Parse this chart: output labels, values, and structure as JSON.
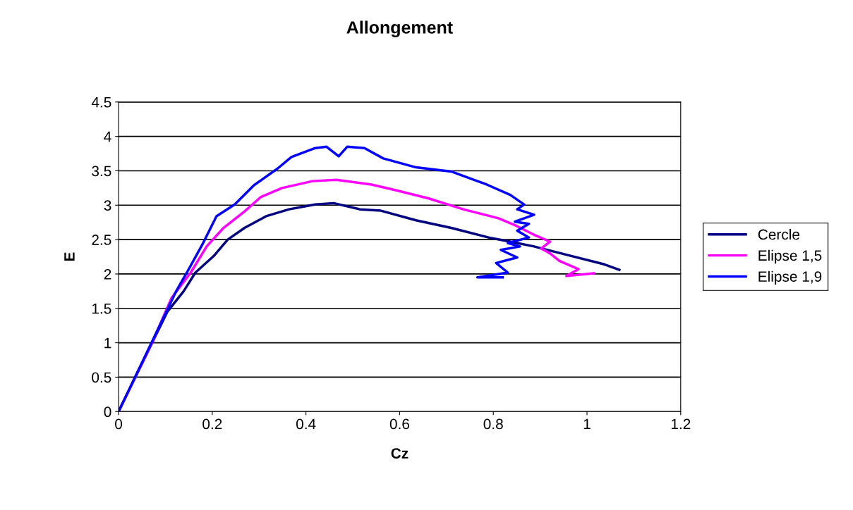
{
  "chart_data": {
    "type": "line",
    "title": "Allongement",
    "xlabel": "Cz",
    "ylabel": "E",
    "xlim": [
      0,
      1.2
    ],
    "xticks": [
      0,
      0.2,
      0.4,
      0.6,
      0.8,
      1,
      1.2
    ],
    "ylim": [
      0,
      4.5
    ],
    "yticks": [
      0,
      0.5,
      1,
      1.5,
      2,
      2.5,
      3,
      3.5,
      4,
      4.5
    ],
    "grid": "y",
    "legend": "right",
    "marker": "none",
    "line_style": "solid",
    "series": [
      {
        "name": "Cercle",
        "color": "#000080",
        "x": [
          0,
          0.104,
          0.139,
          0.164,
          0.203,
          0.233,
          0.269,
          0.315,
          0.364,
          0.42,
          0.459,
          0.515,
          0.56,
          0.635,
          0.71,
          0.79,
          0.836,
          0.887,
          0.962,
          1.037,
          1.069
        ],
        "values": [
          0,
          1.45,
          1.75,
          2.02,
          2.26,
          2.5,
          2.67,
          2.84,
          2.94,
          3.01,
          3.03,
          2.94,
          2.92,
          2.78,
          2.67,
          2.53,
          2.47,
          2.4,
          2.27,
          2.14,
          2.06
        ]
      },
      {
        "name": "Elipse 1,5",
        "color": "#ff00ff",
        "x": [
          0,
          0.074,
          0.113,
          0.154,
          0.188,
          0.224,
          0.269,
          0.304,
          0.349,
          0.414,
          0.465,
          0.54,
          0.59,
          0.661,
          0.736,
          0.811,
          0.846,
          0.887,
          0.921,
          0.902,
          0.921,
          0.941,
          0.982,
          0.956,
          1.015
        ],
        "values": [
          0,
          1.04,
          1.65,
          2.02,
          2.4,
          2.67,
          2.91,
          3.12,
          3.25,
          3.35,
          3.37,
          3.3,
          3.22,
          3.1,
          2.94,
          2.81,
          2.71,
          2.57,
          2.47,
          2.37,
          2.3,
          2.19,
          2.07,
          1.97,
          2.01
        ]
      },
      {
        "name": "Elipse 1,9",
        "color": "#0000ff",
        "x": [
          0,
          0.123,
          0.149,
          0.179,
          0.209,
          0.248,
          0.289,
          0.339,
          0.369,
          0.42,
          0.444,
          0.47,
          0.488,
          0.525,
          0.565,
          0.635,
          0.71,
          0.786,
          0.836,
          0.866,
          0.851,
          0.887,
          0.846,
          0.876,
          0.851,
          0.876,
          0.831,
          0.857,
          0.816,
          0.851,
          0.806,
          0.831,
          0.766,
          0.82
        ],
        "values": [
          0,
          1.75,
          2.06,
          2.43,
          2.84,
          3.01,
          3.29,
          3.53,
          3.7,
          3.83,
          3.85,
          3.71,
          3.85,
          3.83,
          3.68,
          3.55,
          3.49,
          3.3,
          3.15,
          3.01,
          2.94,
          2.86,
          2.76,
          2.73,
          2.63,
          2.53,
          2.45,
          2.4,
          2.35,
          2.24,
          2.16,
          2.02,
          1.95,
          1.95
        ]
      }
    ]
  }
}
